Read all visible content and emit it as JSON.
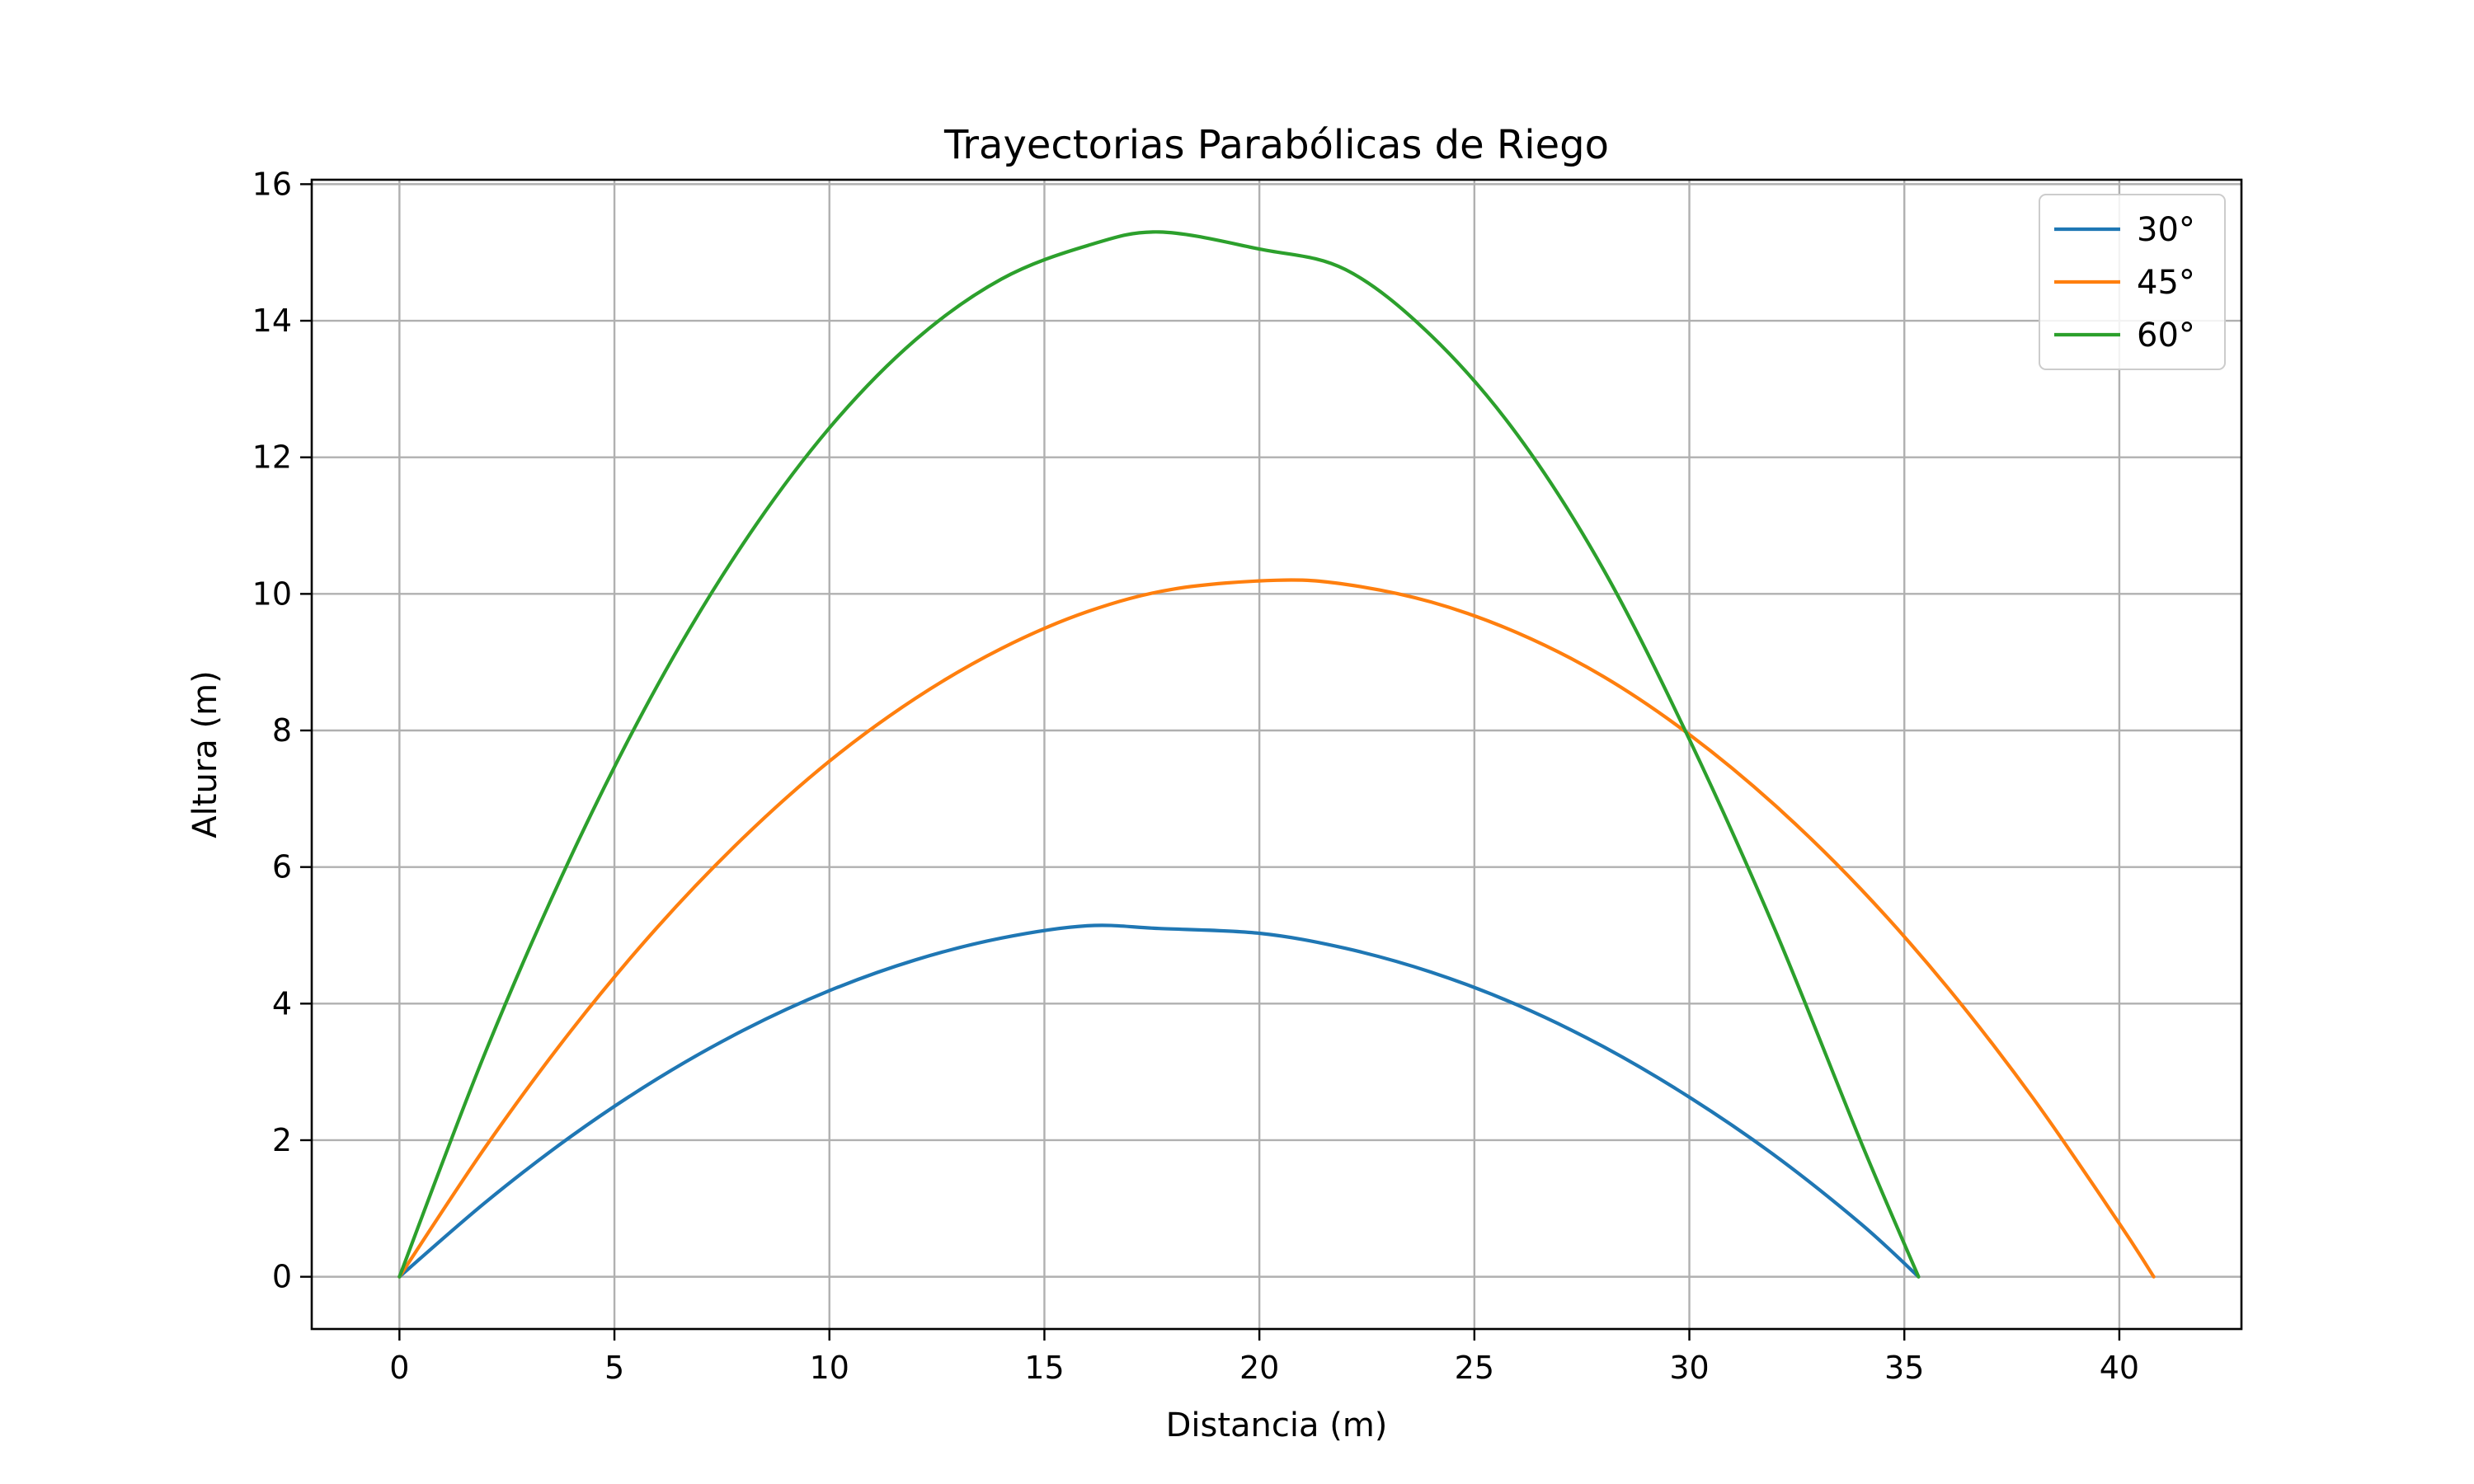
{
  "chart_data": {
    "type": "line",
    "title": "Trayectorias Parabólicas de Riego",
    "xlabel": "Distancia (m)",
    "ylabel": "Altura (m)",
    "xlim": [
      -2.04,
      42.84
    ],
    "ylim": [
      -0.765,
      16.065
    ],
    "xticks": [
      0,
      5,
      10,
      15,
      20,
      25,
      30,
      35,
      40
    ],
    "yticks": [
      0,
      2,
      4,
      6,
      8,
      10,
      12,
      14,
      16
    ],
    "grid": true,
    "legend_position": "top-right",
    "series": [
      {
        "name": "30°",
        "color": "#1f77b4",
        "x": [
          0,
          2,
          4,
          6,
          8,
          10,
          12,
          14,
          16,
          17.67,
          20,
          22,
          24,
          26,
          28,
          30,
          32,
          34,
          35.33
        ],
        "y": [
          0,
          1.09,
          2.06,
          2.9,
          3.61,
          4.19,
          4.64,
          4.96,
          5.14,
          5.1,
          5.03,
          4.81,
          4.46,
          3.98,
          3.37,
          2.63,
          1.77,
          0.77,
          0
        ]
      },
      {
        "name": "45°",
        "color": "#ff7f0e",
        "x": [
          0,
          2,
          4,
          6,
          8,
          10,
          12,
          14,
          16,
          18,
          20.4,
          22,
          24,
          26,
          28,
          30,
          32,
          34,
          36,
          38,
          40,
          40.8
        ],
        "y": [
          0,
          1.9,
          3.61,
          5.12,
          6.43,
          7.55,
          8.47,
          9.2,
          9.74,
          10.07,
          10.2,
          10.14,
          9.88,
          9.43,
          8.79,
          7.94,
          6.9,
          5.67,
          4.24,
          2.61,
          0.78,
          0
        ]
      },
      {
        "name": "60°",
        "color": "#2ca02c",
        "x": [
          0,
          2,
          4,
          6,
          8,
          10,
          12,
          14,
          16,
          17.67,
          20,
          22,
          24,
          26,
          28,
          30,
          32,
          34,
          35.33
        ],
        "y": [
          0,
          3.29,
          6.17,
          8.66,
          10.74,
          12.43,
          13.72,
          14.61,
          15.1,
          15.3,
          15.05,
          14.75,
          13.78,
          12.33,
          10.36,
          7.87,
          5.07,
          1.96,
          0
        ]
      }
    ]
  }
}
